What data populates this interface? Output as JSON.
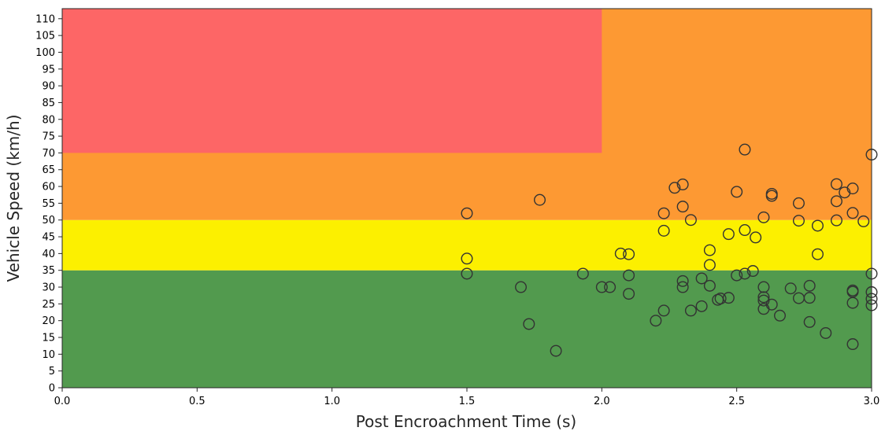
{
  "chart_data": {
    "type": "scatter",
    "title": "",
    "xlabel": "Post Encroachment Time (s)",
    "ylabel": "Vehicle Speed (km/h)",
    "xlim": [
      0,
      3.0
    ],
    "ylim": [
      0,
      113
    ],
    "x_ticks": [
      0.0,
      0.5,
      1.0,
      1.5,
      2.0,
      2.5,
      3.0
    ],
    "x_tick_labels": [
      "0.0",
      "0.5",
      "1.0",
      "1.5",
      "2.0",
      "2.5",
      "3.0"
    ],
    "y_ticks": [
      0,
      5,
      10,
      15,
      20,
      25,
      30,
      35,
      40,
      45,
      50,
      55,
      60,
      65,
      70,
      75,
      80,
      85,
      90,
      95,
      100,
      105,
      110
    ],
    "grid": false,
    "legend": false,
    "zones": [
      {
        "x_from": 0,
        "x_to": 3.0,
        "y_from": 0,
        "y_to": 35,
        "color": "#529a4e"
      },
      {
        "x_from": 0,
        "x_to": 3.0,
        "y_from": 35,
        "y_to": 50,
        "color": "#fcf000"
      },
      {
        "x_from": 0,
        "x_to": 3.0,
        "y_from": 50,
        "y_to": 113,
        "color": "#fd9933"
      },
      {
        "x_from": 0,
        "x_to": 2.0,
        "y_from": 70,
        "y_to": 113,
        "color": "#fd6666"
      }
    ],
    "marker": {
      "edge_color": "#333333",
      "fill": "transparent"
    },
    "points": [
      {
        "x": 1.5,
        "y": 52.0
      },
      {
        "x": 1.5,
        "y": 38.5
      },
      {
        "x": 1.5,
        "y": 34.0
      },
      {
        "x": 1.7,
        "y": 30.0
      },
      {
        "x": 1.73,
        "y": 19.0
      },
      {
        "x": 1.77,
        "y": 56.0
      },
      {
        "x": 1.83,
        "y": 11.0
      },
      {
        "x": 1.93,
        "y": 34.0
      },
      {
        "x": 2.0,
        "y": 30.0
      },
      {
        "x": 2.03,
        "y": 30.0
      },
      {
        "x": 2.07,
        "y": 40.0
      },
      {
        "x": 2.1,
        "y": 39.8
      },
      {
        "x": 2.1,
        "y": 33.5
      },
      {
        "x": 2.1,
        "y": 28.0
      },
      {
        "x": 2.2,
        "y": 20.0
      },
      {
        "x": 2.23,
        "y": 52.0
      },
      {
        "x": 2.23,
        "y": 46.8
      },
      {
        "x": 2.23,
        "y": 23.0
      },
      {
        "x": 2.27,
        "y": 59.6
      },
      {
        "x": 2.3,
        "y": 60.6
      },
      {
        "x": 2.3,
        "y": 54.0
      },
      {
        "x": 2.3,
        "y": 31.8
      },
      {
        "x": 2.3,
        "y": 30.0
      },
      {
        "x": 2.33,
        "y": 50.0
      },
      {
        "x": 2.33,
        "y": 23.0
      },
      {
        "x": 2.37,
        "y": 32.6
      },
      {
        "x": 2.37,
        "y": 24.3
      },
      {
        "x": 2.4,
        "y": 41.0
      },
      {
        "x": 2.4,
        "y": 36.6
      },
      {
        "x": 2.4,
        "y": 30.4
      },
      {
        "x": 2.43,
        "y": 26.2
      },
      {
        "x": 2.44,
        "y": 26.6
      },
      {
        "x": 2.47,
        "y": 45.8
      },
      {
        "x": 2.47,
        "y": 26.8
      },
      {
        "x": 2.5,
        "y": 58.4
      },
      {
        "x": 2.5,
        "y": 33.5
      },
      {
        "x": 2.53,
        "y": 71.0
      },
      {
        "x": 2.53,
        "y": 47.0
      },
      {
        "x": 2.53,
        "y": 34.0
      },
      {
        "x": 2.56,
        "y": 34.8
      },
      {
        "x": 2.57,
        "y": 44.8
      },
      {
        "x": 2.6,
        "y": 50.8
      },
      {
        "x": 2.6,
        "y": 30.0
      },
      {
        "x": 2.6,
        "y": 27.0
      },
      {
        "x": 2.6,
        "y": 26.0
      },
      {
        "x": 2.6,
        "y": 23.5
      },
      {
        "x": 2.63,
        "y": 57.8
      },
      {
        "x": 2.63,
        "y": 57.2
      },
      {
        "x": 2.63,
        "y": 24.8
      },
      {
        "x": 2.66,
        "y": 21.5
      },
      {
        "x": 2.7,
        "y": 29.6
      },
      {
        "x": 2.73,
        "y": 55.0
      },
      {
        "x": 2.73,
        "y": 49.8
      },
      {
        "x": 2.73,
        "y": 26.7
      },
      {
        "x": 2.77,
        "y": 30.4
      },
      {
        "x": 2.77,
        "y": 26.8
      },
      {
        "x": 2.77,
        "y": 19.6
      },
      {
        "x": 2.8,
        "y": 48.3
      },
      {
        "x": 2.8,
        "y": 39.8
      },
      {
        "x": 2.83,
        "y": 16.3
      },
      {
        "x": 2.87,
        "y": 60.7
      },
      {
        "x": 2.87,
        "y": 55.6
      },
      {
        "x": 2.87,
        "y": 49.9
      },
      {
        "x": 2.9,
        "y": 58.2
      },
      {
        "x": 2.93,
        "y": 59.4
      },
      {
        "x": 2.93,
        "y": 52.1
      },
      {
        "x": 2.93,
        "y": 29.0
      },
      {
        "x": 2.93,
        "y": 28.6
      },
      {
        "x": 2.93,
        "y": 25.3
      },
      {
        "x": 2.93,
        "y": 13.0
      },
      {
        "x": 2.97,
        "y": 49.6
      },
      {
        "x": 3.0,
        "y": 69.5
      },
      {
        "x": 3.0,
        "y": 34.0
      },
      {
        "x": 3.0,
        "y": 28.5
      },
      {
        "x": 3.0,
        "y": 26.5
      },
      {
        "x": 3.0,
        "y": 24.6
      }
    ]
  }
}
